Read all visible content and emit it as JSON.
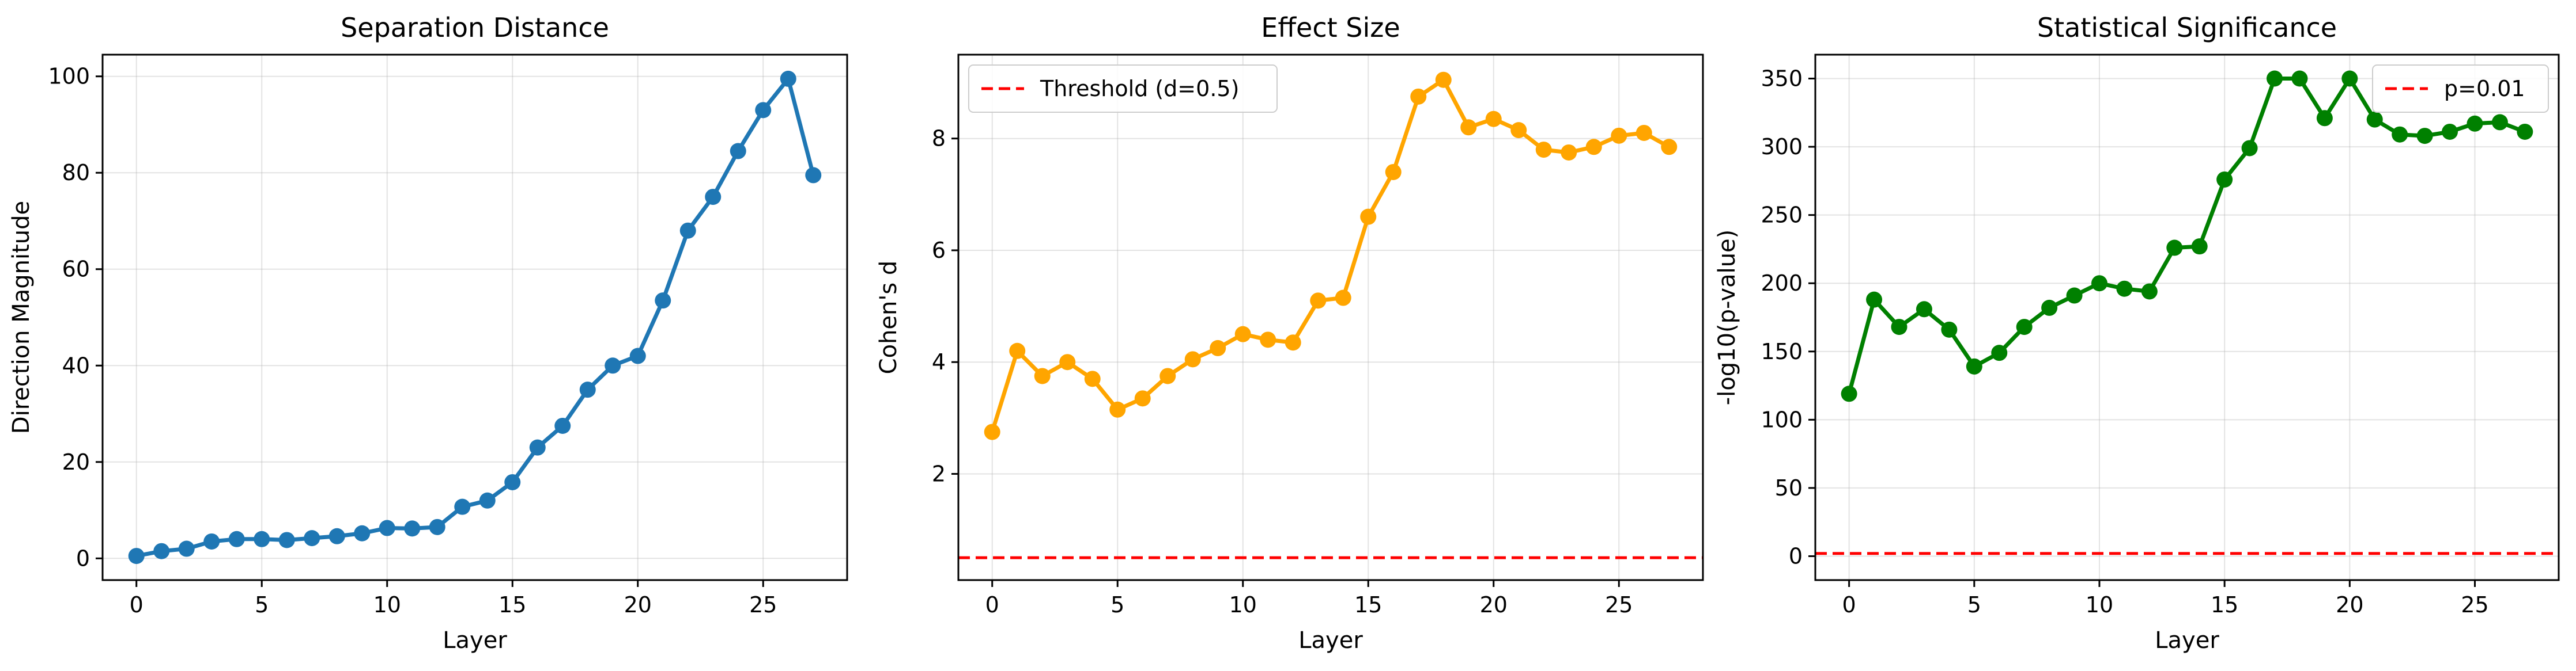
{
  "chart_data": [
    {
      "type": "line",
      "title": "Separation Distance",
      "xlabel": "Layer",
      "ylabel": "Direction Magnitude",
      "xlim": [
        -1.35,
        28.35
      ],
      "ylim": [
        -4.5,
        104.5
      ],
      "xticks": [
        0,
        5,
        10,
        15,
        20,
        25
      ],
      "yticks": [
        0,
        20,
        40,
        60,
        80,
        100
      ],
      "grid": true,
      "legend": null,
      "series": [
        {
          "color": "#1f77b4",
          "marker": "circle",
          "x": [
            0,
            1,
            2,
            3,
            4,
            5,
            6,
            7,
            8,
            9,
            10,
            11,
            12,
            13,
            14,
            15,
            16,
            17,
            18,
            19,
            20,
            21,
            22,
            23,
            24,
            25,
            26,
            27
          ],
          "y": [
            0.5,
            1.5,
            2,
            3.5,
            4,
            4,
            3.8,
            4.2,
            4.6,
            5.2,
            6.3,
            6.2,
            6.5,
            10.7,
            12,
            15.8,
            23,
            27.5,
            35,
            40,
            42,
            53.5,
            68,
            75,
            84.5,
            93,
            99.5,
            79.5
          ]
        }
      ]
    },
    {
      "type": "line",
      "title": "Effect Size",
      "xlabel": "Layer",
      "ylabel": "Cohen's d",
      "xlim": [
        -1.35,
        28.35
      ],
      "ylim": [
        0.1,
        9.5
      ],
      "xticks": [
        0,
        5,
        10,
        15,
        20,
        25
      ],
      "yticks": [
        2,
        4,
        6,
        8
      ],
      "grid": true,
      "legend": "upper left",
      "reference_line": {
        "y": 0.5,
        "label": "Threshold (d=0.5)",
        "color": "#ff0000",
        "style": "dashed"
      },
      "series": [
        {
          "color": "#ffa500",
          "marker": "circle",
          "x": [
            0,
            1,
            2,
            3,
            4,
            5,
            6,
            7,
            8,
            9,
            10,
            11,
            12,
            13,
            14,
            15,
            16,
            17,
            18,
            19,
            20,
            21,
            22,
            23,
            24,
            25,
            26,
            27
          ],
          "y": [
            2.75,
            4.2,
            3.75,
            4.0,
            3.7,
            3.15,
            3.35,
            3.75,
            4.05,
            4.25,
            4.5,
            4.4,
            4.35,
            5.1,
            5.15,
            6.6,
            7.4,
            8.75,
            9.05,
            8.2,
            8.35,
            8.15,
            7.8,
            7.75,
            7.85,
            8.05,
            8.1,
            7.85
          ]
        }
      ]
    },
    {
      "type": "line",
      "title": "Statistical Significance",
      "xlabel": "Layer",
      "ylabel": "-log10(p-value)",
      "xlim": [
        -1.35,
        28.35
      ],
      "ylim": [
        -17.5,
        367.5
      ],
      "xticks": [
        0,
        5,
        10,
        15,
        20,
        25
      ],
      "yticks": [
        0,
        50,
        100,
        150,
        200,
        250,
        300,
        350
      ],
      "grid": true,
      "legend": "upper right",
      "reference_line": {
        "y": 2,
        "label": "p=0.01",
        "color": "#ff0000",
        "style": "dashed"
      },
      "series": [
        {
          "color": "#008000",
          "marker": "circle",
          "x": [
            0,
            1,
            2,
            3,
            4,
            5,
            6,
            7,
            8,
            9,
            10,
            11,
            12,
            13,
            14,
            15,
            16,
            17,
            18,
            19,
            20,
            21,
            22,
            23,
            24,
            25,
            26,
            27
          ],
          "y": [
            119,
            188,
            168,
            181,
            166,
            139,
            149,
            168,
            182,
            191,
            200,
            196,
            194,
            226,
            227,
            276,
            299,
            350,
            350,
            321,
            350,
            320,
            309,
            308,
            311,
            317,
            318,
            311
          ]
        }
      ]
    }
  ]
}
